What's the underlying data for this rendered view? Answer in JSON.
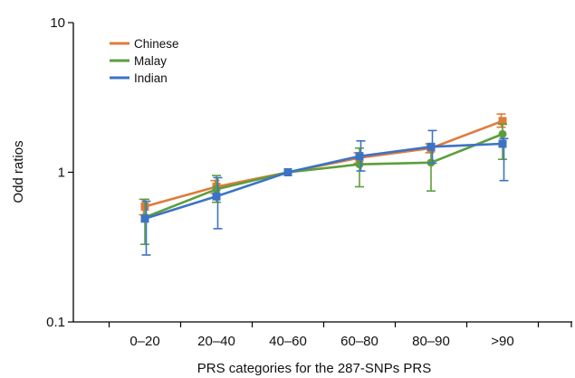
{
  "chart_data": {
    "type": "line",
    "title": "",
    "xlabel": "PRS categories for the 287-SNPs PRS",
    "ylabel": "Odd ratios",
    "y_scale": "log",
    "ylim": [
      0.1,
      10
    ],
    "y_ticks": [
      {
        "value": 10,
        "label": "10"
      },
      {
        "value": 1,
        "label": "1"
      },
      {
        "value": 0.1,
        "label": "0.1"
      }
    ],
    "categories": [
      "0–20",
      "20–40",
      "40–60",
      "60–80",
      "80–90",
      ">90"
    ],
    "grid": false,
    "legend_position": "top-left",
    "series": [
      {
        "name": "Chinese",
        "color": "#e07b39",
        "marker": "square",
        "values": [
          0.59,
          0.8,
          1.0,
          1.25,
          1.45,
          2.2
        ],
        "ci_low": [
          0.52,
          0.72,
          1.0,
          1.15,
          1.35,
          2.0
        ],
        "ci_high": [
          0.66,
          0.88,
          1.0,
          1.35,
          1.55,
          2.45
        ]
      },
      {
        "name": "Malay",
        "color": "#5c9e3c",
        "marker": "circle",
        "values": [
          0.5,
          0.77,
          1.0,
          1.13,
          1.16,
          1.8
        ],
        "ci_low": [
          0.33,
          0.63,
          1.0,
          0.8,
          0.75,
          1.22
        ],
        "ci_high": [
          0.66,
          0.95,
          1.0,
          1.45,
          1.5,
          2.1
        ]
      },
      {
        "name": "Indian",
        "color": "#3d73c4",
        "marker": "square",
        "values": [
          0.49,
          0.69,
          1.0,
          1.28,
          1.48,
          1.55
        ],
        "ci_low": [
          0.28,
          0.42,
          1.0,
          1.02,
          1.15,
          0.88
        ],
        "ci_high": [
          0.64,
          0.92,
          1.0,
          1.62,
          1.9,
          1.68
        ]
      }
    ]
  }
}
